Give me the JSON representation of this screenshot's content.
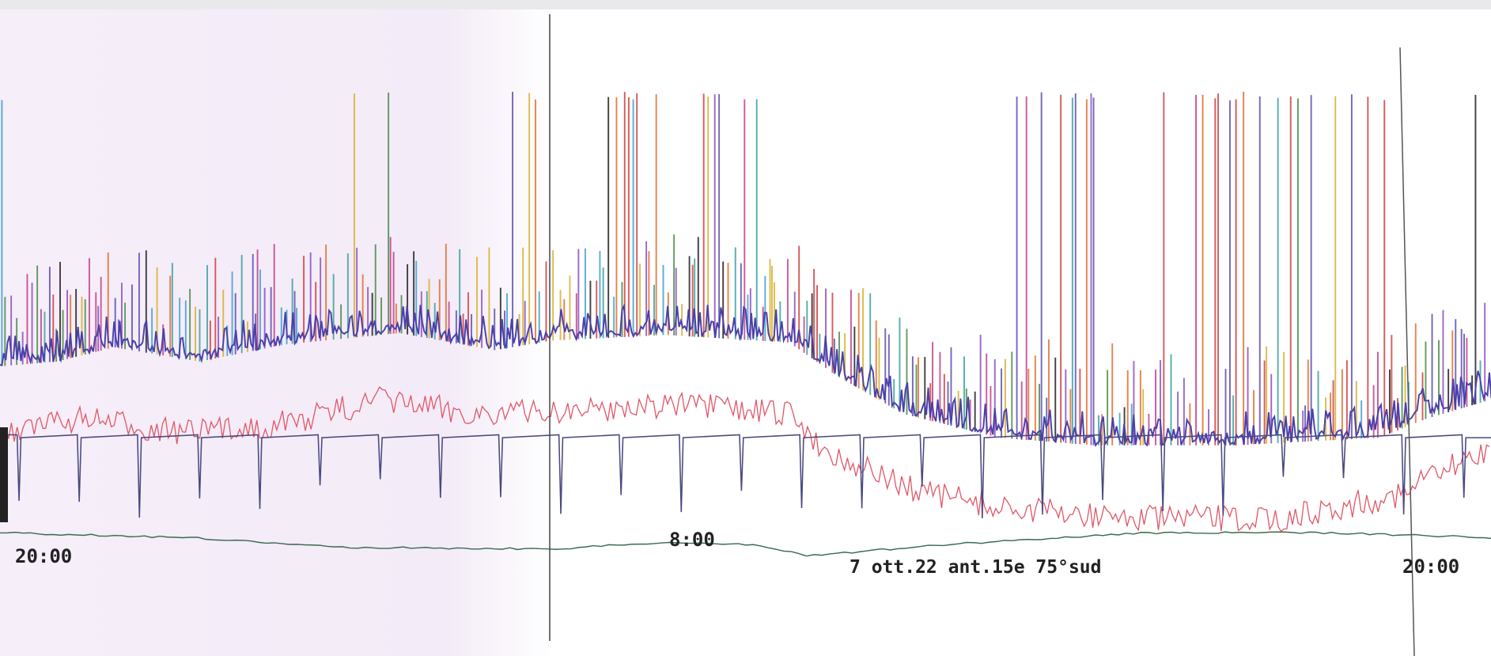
{
  "labels": {
    "time_start": "20:00",
    "time_mid": "8:00",
    "caption": "7 ott.22 ant.15e 75°sud",
    "time_end": "20:00"
  }
}
